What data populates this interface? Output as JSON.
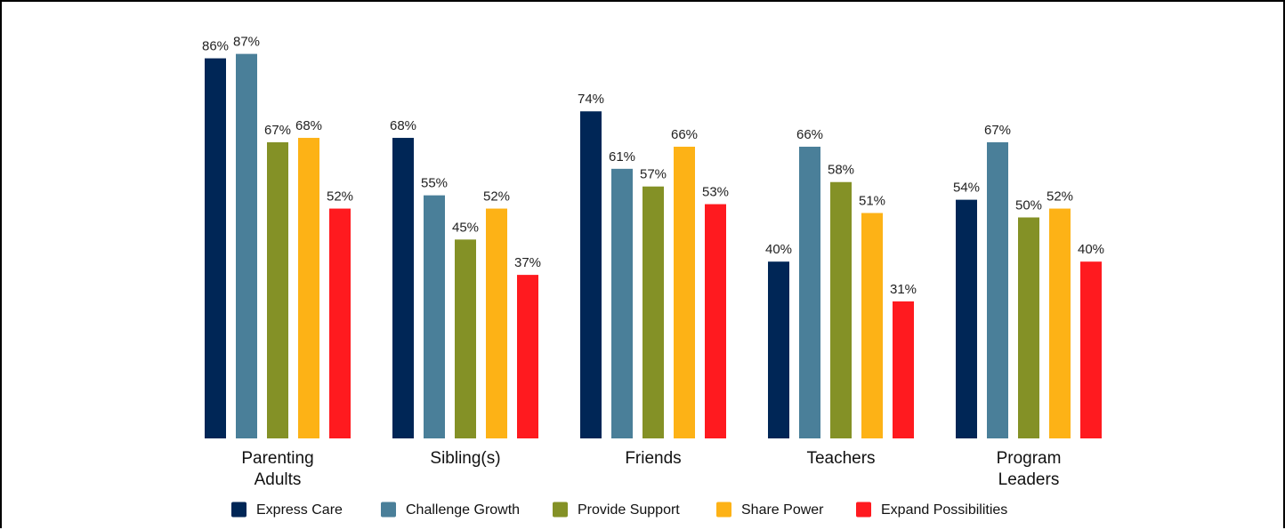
{
  "chart_data": {
    "type": "bar",
    "title": "",
    "xlabel": "",
    "ylabel": "",
    "ylim": [
      0,
      100
    ],
    "grid": false,
    "legend_position": "bottom",
    "value_format": "percent",
    "categories": [
      [
        "Parenting",
        "Adults"
      ],
      [
        "Sibling(s)"
      ],
      [
        "Friends"
      ],
      [
        "Teachers"
      ],
      [
        "Program",
        "Leaders"
      ]
    ],
    "series": [
      {
        "name": "Express Care",
        "color": "#002656",
        "values": [
          86,
          68,
          74,
          40,
          54
        ]
      },
      {
        "name": "Challenge Growth",
        "color": "#4A7F99",
        "values": [
          87,
          55,
          61,
          66,
          67
        ]
      },
      {
        "name": "Provide Support",
        "color": "#849126",
        "values": [
          67,
          45,
          57,
          58,
          50
        ]
      },
      {
        "name": "Share Power",
        "color": "#FDB216",
        "values": [
          68,
          52,
          66,
          51,
          52
        ]
      },
      {
        "name": "Expand Possibilities",
        "color": "#FF1A1F",
        "values": [
          52,
          37,
          53,
          31,
          40
        ]
      }
    ]
  }
}
